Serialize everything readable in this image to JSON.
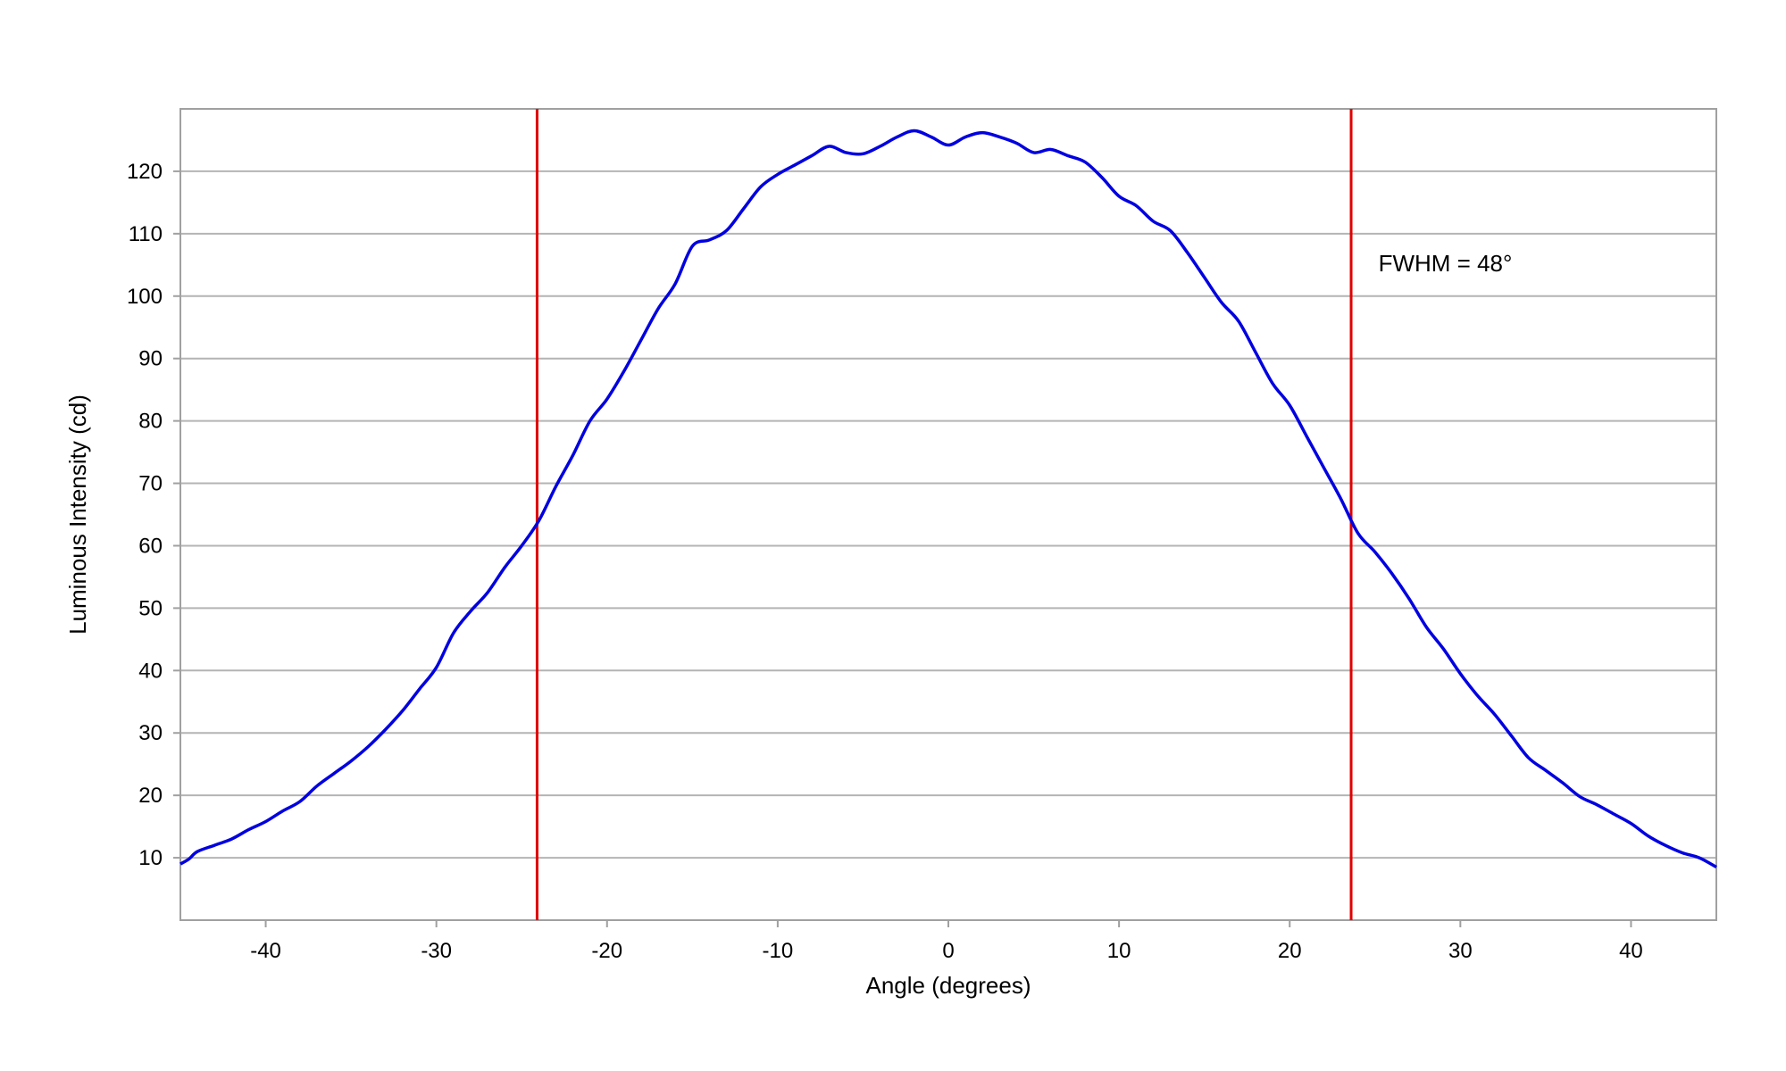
{
  "chart_data": {
    "type": "line",
    "xlabel": "Angle (degrees)",
    "ylabel": "Luminous Intensity (cd)",
    "xlim": [
      -45,
      45
    ],
    "ylim": [
      0,
      130
    ],
    "xticks": [
      -40,
      -30,
      -20,
      -10,
      0,
      10,
      20,
      30,
      40
    ],
    "yticks": [
      10,
      20,
      30,
      40,
      50,
      60,
      70,
      80,
      90,
      100,
      110,
      120
    ],
    "grid": "horizontal",
    "annotation": {
      "text": "FWHM = 48°",
      "x": 25.2,
      "y": 104
    },
    "vlines": [
      {
        "x": -24.1,
        "color": "#e00000"
      },
      {
        "x": 23.6,
        "color": "#e00000"
      }
    ],
    "series": [
      {
        "color": "#0000e0",
        "x": [
          -45,
          -44.5,
          -44,
          -43,
          -42,
          -41,
          -40,
          -39,
          -38,
          -37,
          -36,
          -35,
          -34,
          -33,
          -32,
          -31,
          -30,
          -29,
          -28,
          -27,
          -26,
          -25,
          -24,
          -23,
          -22,
          -21,
          -20,
          -19,
          -18,
          -17,
          -16,
          -15,
          -14,
          -13,
          -12,
          -11,
          -10,
          -9,
          -8,
          -7,
          -6,
          -5,
          -4,
          -3,
          -2,
          -1,
          0,
          1,
          2,
          3,
          4,
          5,
          6,
          7,
          8,
          9,
          10,
          11,
          12,
          13,
          14,
          15,
          16,
          17,
          18,
          19,
          20,
          21,
          22,
          23,
          24,
          25,
          26,
          27,
          28,
          29,
          30,
          31,
          32,
          33,
          34,
          35,
          36,
          37,
          38,
          39,
          40,
          41,
          42,
          43,
          44,
          45
        ],
        "y": [
          9,
          9.8,
          11,
          12,
          13,
          14.5,
          15.8,
          17.5,
          19,
          21.5,
          23.5,
          25.5,
          27.8,
          30.5,
          33.5,
          37,
          40.5,
          46,
          49.5,
          52.5,
          56.5,
          60,
          64,
          69.5,
          74.5,
          80,
          83.5,
          88,
          93,
          98,
          102,
          108,
          109,
          110.5,
          114,
          117.5,
          119.5,
          121,
          122.5,
          124,
          123,
          122.8,
          124,
          125.5,
          126.5,
          125.5,
          124.2,
          125.5,
          126.2,
          125.5,
          124.5,
          123,
          123.5,
          122.5,
          121.5,
          119,
          116,
          114.5,
          112,
          110.5,
          107,
          103,
          99,
          96,
          91,
          86,
          82.5,
          77.5,
          72.5,
          67.5,
          62,
          59,
          55.5,
          51.5,
          47,
          43.5,
          39.5,
          36,
          33,
          29.5,
          26,
          24,
          22,
          19.8,
          18.5,
          17,
          15.5,
          13.5,
          12,
          10.8,
          10,
          8.5
        ]
      }
    ]
  }
}
